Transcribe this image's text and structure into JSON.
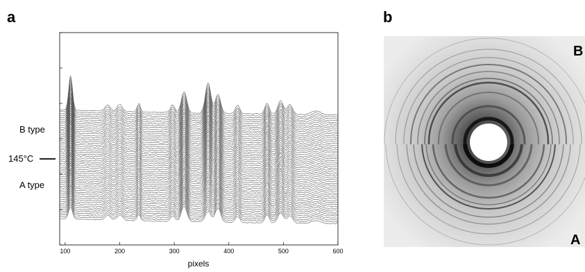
{
  "chart_data": [
    {
      "type": "line",
      "panel": "a",
      "xlabel": "pixels",
      "ylabel": "",
      "xlim": [
        90,
        600
      ],
      "x_ticks": [
        100,
        200,
        300,
        400,
        500,
        600
      ],
      "grid": false,
      "legend": "none",
      "annotations": [
        {
          "text": "B type",
          "trace_index": 44
        },
        {
          "text": "145°C",
          "trace_index": 38,
          "marker": "line"
        },
        {
          "text": "A type",
          "trace_index": 24
        }
      ],
      "series_description": "Stacked waterfall of diffraction intensity profiles",
      "series_count": 58,
      "peaks": [
        {
          "x": 110,
          "height": 90,
          "width": 3.5
        },
        {
          "x": 178,
          "height": 16,
          "width": 5
        },
        {
          "x": 200,
          "height": 18,
          "width": 5
        },
        {
          "x": 235,
          "height": 22,
          "width": 3
        },
        {
          "x": 297,
          "height": 20,
          "width": 4
        },
        {
          "x": 318,
          "height": 55,
          "width": 5
        },
        {
          "x": 362,
          "height": 80,
          "width": 5
        },
        {
          "x": 380,
          "height": 50,
          "width": 5
        },
        {
          "x": 416,
          "height": 22,
          "width": 4
        },
        {
          "x": 470,
          "height": 28,
          "width": 4
        },
        {
          "x": 495,
          "height": 35,
          "width": 5
        },
        {
          "x": 512,
          "height": 26,
          "width": 5
        },
        {
          "x": 560,
          "height": 10,
          "width": 8
        }
      ],
      "line_color": "#555555"
    },
    {
      "type": "image",
      "panel": "b",
      "description_visible": "Powder diffraction ring pattern, split horizontally",
      "labels": {
        "top": "B",
        "bottom": "A"
      }
    }
  ],
  "panels": {
    "a_label": "a",
    "b_label": "b"
  },
  "side_labels": {
    "b_type": "B type",
    "temp": "145°C",
    "a_type": "A type"
  },
  "x_tick_labels": [
    "100",
    "200",
    "300",
    "400",
    "500",
    "600"
  ],
  "x_axis_title": "pixels",
  "image_labels": {
    "top": "B",
    "bottom": "A"
  }
}
